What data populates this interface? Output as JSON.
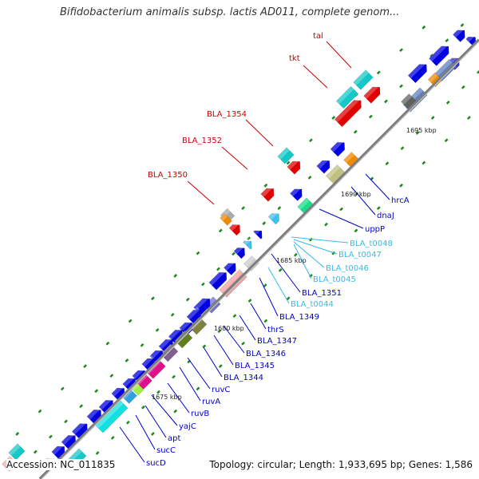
{
  "title": "Bifidobacterium animalis subsp. lactis AD011, complete genom...",
  "footer": {
    "accession": "Accession: NC_011835",
    "summary": "Topology: circular; Length: 1,933,695 bp; Genes: 1,586"
  },
  "colors": {
    "backbone": "#888888",
    "label_red": "#cc0000",
    "label_blue": "#0000cc",
    "label_cyan": "#33bbee",
    "tick": "#1a8a1a"
  },
  "scale_labels": [
    "1695 kbp",
    "1690 kbp",
    "1685 kbp",
    "1680 kbp",
    "1675 kbp"
  ],
  "genes_top": [
    {
      "label": "tal",
      "color": "red"
    },
    {
      "label": "tkt",
      "color": "red"
    },
    {
      "label": "BLA_1354",
      "color": "red"
    },
    {
      "label": "BLA_1352",
      "color": "red"
    },
    {
      "label": "BLA_1350",
      "color": "red"
    }
  ],
  "genes_bottom": [
    {
      "label": "hrcA",
      "color": "blue"
    },
    {
      "label": "dnaJ",
      "color": "blue"
    },
    {
      "label": "uppP",
      "color": "blue"
    },
    {
      "label": "BLA_t0048",
      "color": "cyan"
    },
    {
      "label": "BLA_t0047",
      "color": "cyan"
    },
    {
      "label": "BLA_t0046",
      "color": "cyan"
    },
    {
      "label": "BLA_t0045",
      "color": "cyan"
    },
    {
      "label": "BLA_1351",
      "color": "blue"
    },
    {
      "label": "BLA_t0044",
      "color": "cyan"
    },
    {
      "label": "BLA_1349",
      "color": "blue"
    },
    {
      "label": "thrS",
      "color": "blue"
    },
    {
      "label": "BLA_1347",
      "color": "blue"
    },
    {
      "label": "BLA_1346",
      "color": "blue"
    },
    {
      "label": "BLA_1345",
      "color": "blue"
    },
    {
      "label": "BLA_1344",
      "color": "blue"
    },
    {
      "label": "ruvC",
      "color": "blue"
    },
    {
      "label": "ruvA",
      "color": "blue"
    },
    {
      "label": "ruvB",
      "color": "blue"
    },
    {
      "label": "yajC",
      "color": "blue"
    },
    {
      "label": "apt",
      "color": "blue"
    },
    {
      "label": "sucC",
      "color": "blue"
    },
    {
      "label": "sucD",
      "color": "blue"
    }
  ]
}
